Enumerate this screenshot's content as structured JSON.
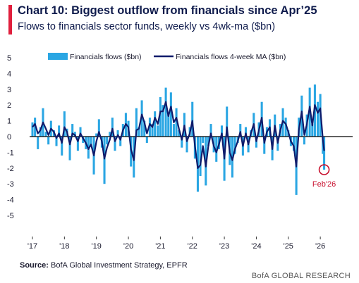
{
  "header": {
    "title": "Chart 10: Biggest outflow from financials since Apr’25",
    "subtitle": "Flows to financials sector funds, weekly vs 4wk-ma ($bn)"
  },
  "footer": {
    "source_label": "Source:",
    "source_text": " BofA Global Investment Strategy, EPFR",
    "brand": "BofA GLOBAL RESEARCH"
  },
  "colors": {
    "accent": "#e01f3d",
    "bars": "#2aa6e3",
    "line": "#0f1b6b",
    "annotation": "#c8102e"
  },
  "chart_data": {
    "type": "bar",
    "title": "Chart 10: Biggest outflow from financials since Apr’25",
    "ylim": [
      -5,
      5
    ],
    "y_ticks": [
      5,
      4,
      3,
      2,
      1,
      0,
      -1,
      -2,
      -3,
      -4,
      -5
    ],
    "x_ticks": [
      "'17",
      "'18",
      "'19",
      "'20",
      "'21",
      "'22",
      "'23",
      "'24",
      "'25",
      "'26"
    ],
    "xlim": [
      2017.0,
      2026.35
    ],
    "legend": {
      "placement": "top",
      "entries": [
        "Financials flows ($bn)",
        "Financials flows 4-week MA ($bn)"
      ]
    },
    "annotation": {
      "label": "Feb'26",
      "x": 2026.12,
      "y": -2.1
    },
    "series": [
      {
        "name": "Financials flows ($bn)",
        "kind": "bar",
        "x": [
          2017.0,
          2017.08,
          2017.17,
          2017.25,
          2017.33,
          2017.42,
          2017.5,
          2017.58,
          2017.67,
          2017.75,
          2017.83,
          2017.92,
          2018.0,
          2018.08,
          2018.17,
          2018.25,
          2018.33,
          2018.42,
          2018.5,
          2018.58,
          2018.67,
          2018.75,
          2018.83,
          2018.92,
          2019.0,
          2019.08,
          2019.17,
          2019.25,
          2019.33,
          2019.42,
          2019.5,
          2019.58,
          2019.67,
          2019.75,
          2019.83,
          2019.92,
          2020.0,
          2020.08,
          2020.17,
          2020.25,
          2020.33,
          2020.42,
          2020.5,
          2020.58,
          2020.67,
          2020.75,
          2020.83,
          2020.92,
          2021.0,
          2021.08,
          2021.17,
          2021.25,
          2021.33,
          2021.42,
          2021.5,
          2021.58,
          2021.67,
          2021.75,
          2021.83,
          2021.92,
          2022.0,
          2022.08,
          2022.17,
          2022.25,
          2022.33,
          2022.42,
          2022.5,
          2022.58,
          2022.67,
          2022.75,
          2022.83,
          2022.92,
          2023.0,
          2023.08,
          2023.17,
          2023.25,
          2023.33,
          2023.42,
          2023.5,
          2023.58,
          2023.67,
          2023.75,
          2023.83,
          2023.92,
          2024.0,
          2024.08,
          2024.17,
          2024.25,
          2024.33,
          2024.42,
          2024.5,
          2024.58,
          2024.67,
          2024.75,
          2024.83,
          2024.92,
          2025.0,
          2025.08,
          2025.17,
          2025.25,
          2025.33,
          2025.42,
          2025.5,
          2025.58,
          2025.67,
          2025.75,
          2025.83,
          2025.92,
          2026.0,
          2026.08,
          2026.12
        ],
        "values": [
          0.9,
          1.2,
          -0.8,
          0.6,
          1.8,
          0.3,
          -0.5,
          1.0,
          0.4,
          -0.6,
          0.7,
          -1.2,
          1.6,
          0.5,
          -1.5,
          0.8,
          0.3,
          -0.9,
          0.6,
          -0.4,
          -0.8,
          -1.4,
          -0.6,
          -2.4,
          0.2,
          1.1,
          -0.7,
          -3.0,
          -0.5,
          0.3,
          1.2,
          -0.9,
          0.4,
          -0.6,
          0.8,
          1.5,
          1.0,
          -1.9,
          -2.6,
          1.8,
          0.6,
          2.3,
          1.0,
          -0.4,
          1.2,
          0.8,
          1.6,
          0.7,
          2.5,
          2.0,
          3.1,
          1.4,
          2.8,
          0.8,
          1.8,
          0.4,
          -0.7,
          1.5,
          -1.0,
          0.6,
          2.2,
          -1.4,
          -3.5,
          -2.5,
          -0.4,
          -3.1,
          -0.6,
          0.8,
          -1.0,
          -1.6,
          -0.8,
          0.7,
          -2.8,
          1.9,
          -1.8,
          -2.6,
          -1.1,
          -0.4,
          0.8,
          -1.2,
          0.6,
          -1.0,
          0.4,
          1.5,
          -0.7,
          0.9,
          2.2,
          -1.1,
          0.6,
          1.1,
          -1.5,
          1.4,
          -0.9,
          0.8,
          1.8,
          1.2,
          0.4,
          -0.6,
          -0.9,
          -3.7,
          1.2,
          2.6,
          -0.5,
          1.4,
          3.1,
          0.8,
          3.3,
          2.2,
          2.7,
          -1.1,
          -2.1
        ]
      },
      {
        "name": "Financials flows 4-week MA ($bn)",
        "kind": "line",
        "x": [
          2017.0,
          2017.08,
          2017.17,
          2017.25,
          2017.33,
          2017.42,
          2017.5,
          2017.58,
          2017.67,
          2017.75,
          2017.83,
          2017.92,
          2018.0,
          2018.08,
          2018.17,
          2018.25,
          2018.33,
          2018.42,
          2018.5,
          2018.58,
          2018.67,
          2018.75,
          2018.83,
          2018.92,
          2019.0,
          2019.08,
          2019.17,
          2019.25,
          2019.33,
          2019.42,
          2019.5,
          2019.58,
          2019.67,
          2019.75,
          2019.83,
          2019.92,
          2020.0,
          2020.08,
          2020.17,
          2020.25,
          2020.33,
          2020.42,
          2020.5,
          2020.58,
          2020.67,
          2020.75,
          2020.83,
          2020.92,
          2021.0,
          2021.08,
          2021.17,
          2021.25,
          2021.33,
          2021.42,
          2021.5,
          2021.58,
          2021.67,
          2021.75,
          2021.83,
          2021.92,
          2022.0,
          2022.08,
          2022.17,
          2022.25,
          2022.33,
          2022.42,
          2022.5,
          2022.58,
          2022.67,
          2022.75,
          2022.83,
          2022.92,
          2023.0,
          2023.08,
          2023.17,
          2023.25,
          2023.33,
          2023.42,
          2023.5,
          2023.58,
          2023.67,
          2023.75,
          2023.83,
          2023.92,
          2024.0,
          2024.08,
          2024.17,
          2024.25,
          2024.33,
          2024.42,
          2024.5,
          2024.58,
          2024.67,
          2024.75,
          2024.83,
          2024.92,
          2025.0,
          2025.08,
          2025.17,
          2025.25,
          2025.33,
          2025.42,
          2025.5,
          2025.58,
          2025.67,
          2025.75,
          2025.83,
          2025.92,
          2026.0,
          2026.08,
          2026.12
        ],
        "values": [
          0.6,
          0.8,
          0.2,
          0.4,
          0.9,
          0.5,
          0.1,
          0.5,
          0.3,
          -0.1,
          0.2,
          -0.4,
          0.6,
          0.3,
          -0.5,
          0.2,
          0.1,
          -0.3,
          0.2,
          -0.1,
          -0.4,
          -0.8,
          -0.5,
          -1.2,
          -0.3,
          0.3,
          -0.3,
          -1.4,
          -0.7,
          -0.2,
          0.5,
          -0.3,
          0.1,
          -0.2,
          0.4,
          0.8,
          0.6,
          -0.8,
          -1.5,
          0.4,
          0.5,
          1.4,
          0.9,
          0.2,
          0.8,
          0.6,
          1.2,
          0.8,
          1.6,
          1.6,
          2.2,
          1.3,
          1.9,
          0.9,
          1.2,
          0.5,
          -0.2,
          0.7,
          -0.3,
          0.2,
          1.0,
          -0.6,
          -2.0,
          -1.8,
          -0.6,
          -1.9,
          -0.6,
          0.2,
          -0.6,
          -1.0,
          -0.5,
          0.2,
          -1.4,
          0.6,
          -1.0,
          -1.5,
          -0.8,
          -0.3,
          0.3,
          -0.6,
          0.2,
          -0.5,
          0.2,
          0.8,
          -0.3,
          0.4,
          1.2,
          -0.4,
          0.3,
          0.6,
          -0.8,
          0.7,
          -0.4,
          0.4,
          1.0,
          0.8,
          0.3,
          -0.3,
          -0.6,
          -1.9,
          0.4,
          1.6,
          0.1,
          0.8,
          1.9,
          0.7,
          2.0,
          1.5,
          1.8,
          -0.2,
          -0.9
        ]
      }
    ]
  }
}
